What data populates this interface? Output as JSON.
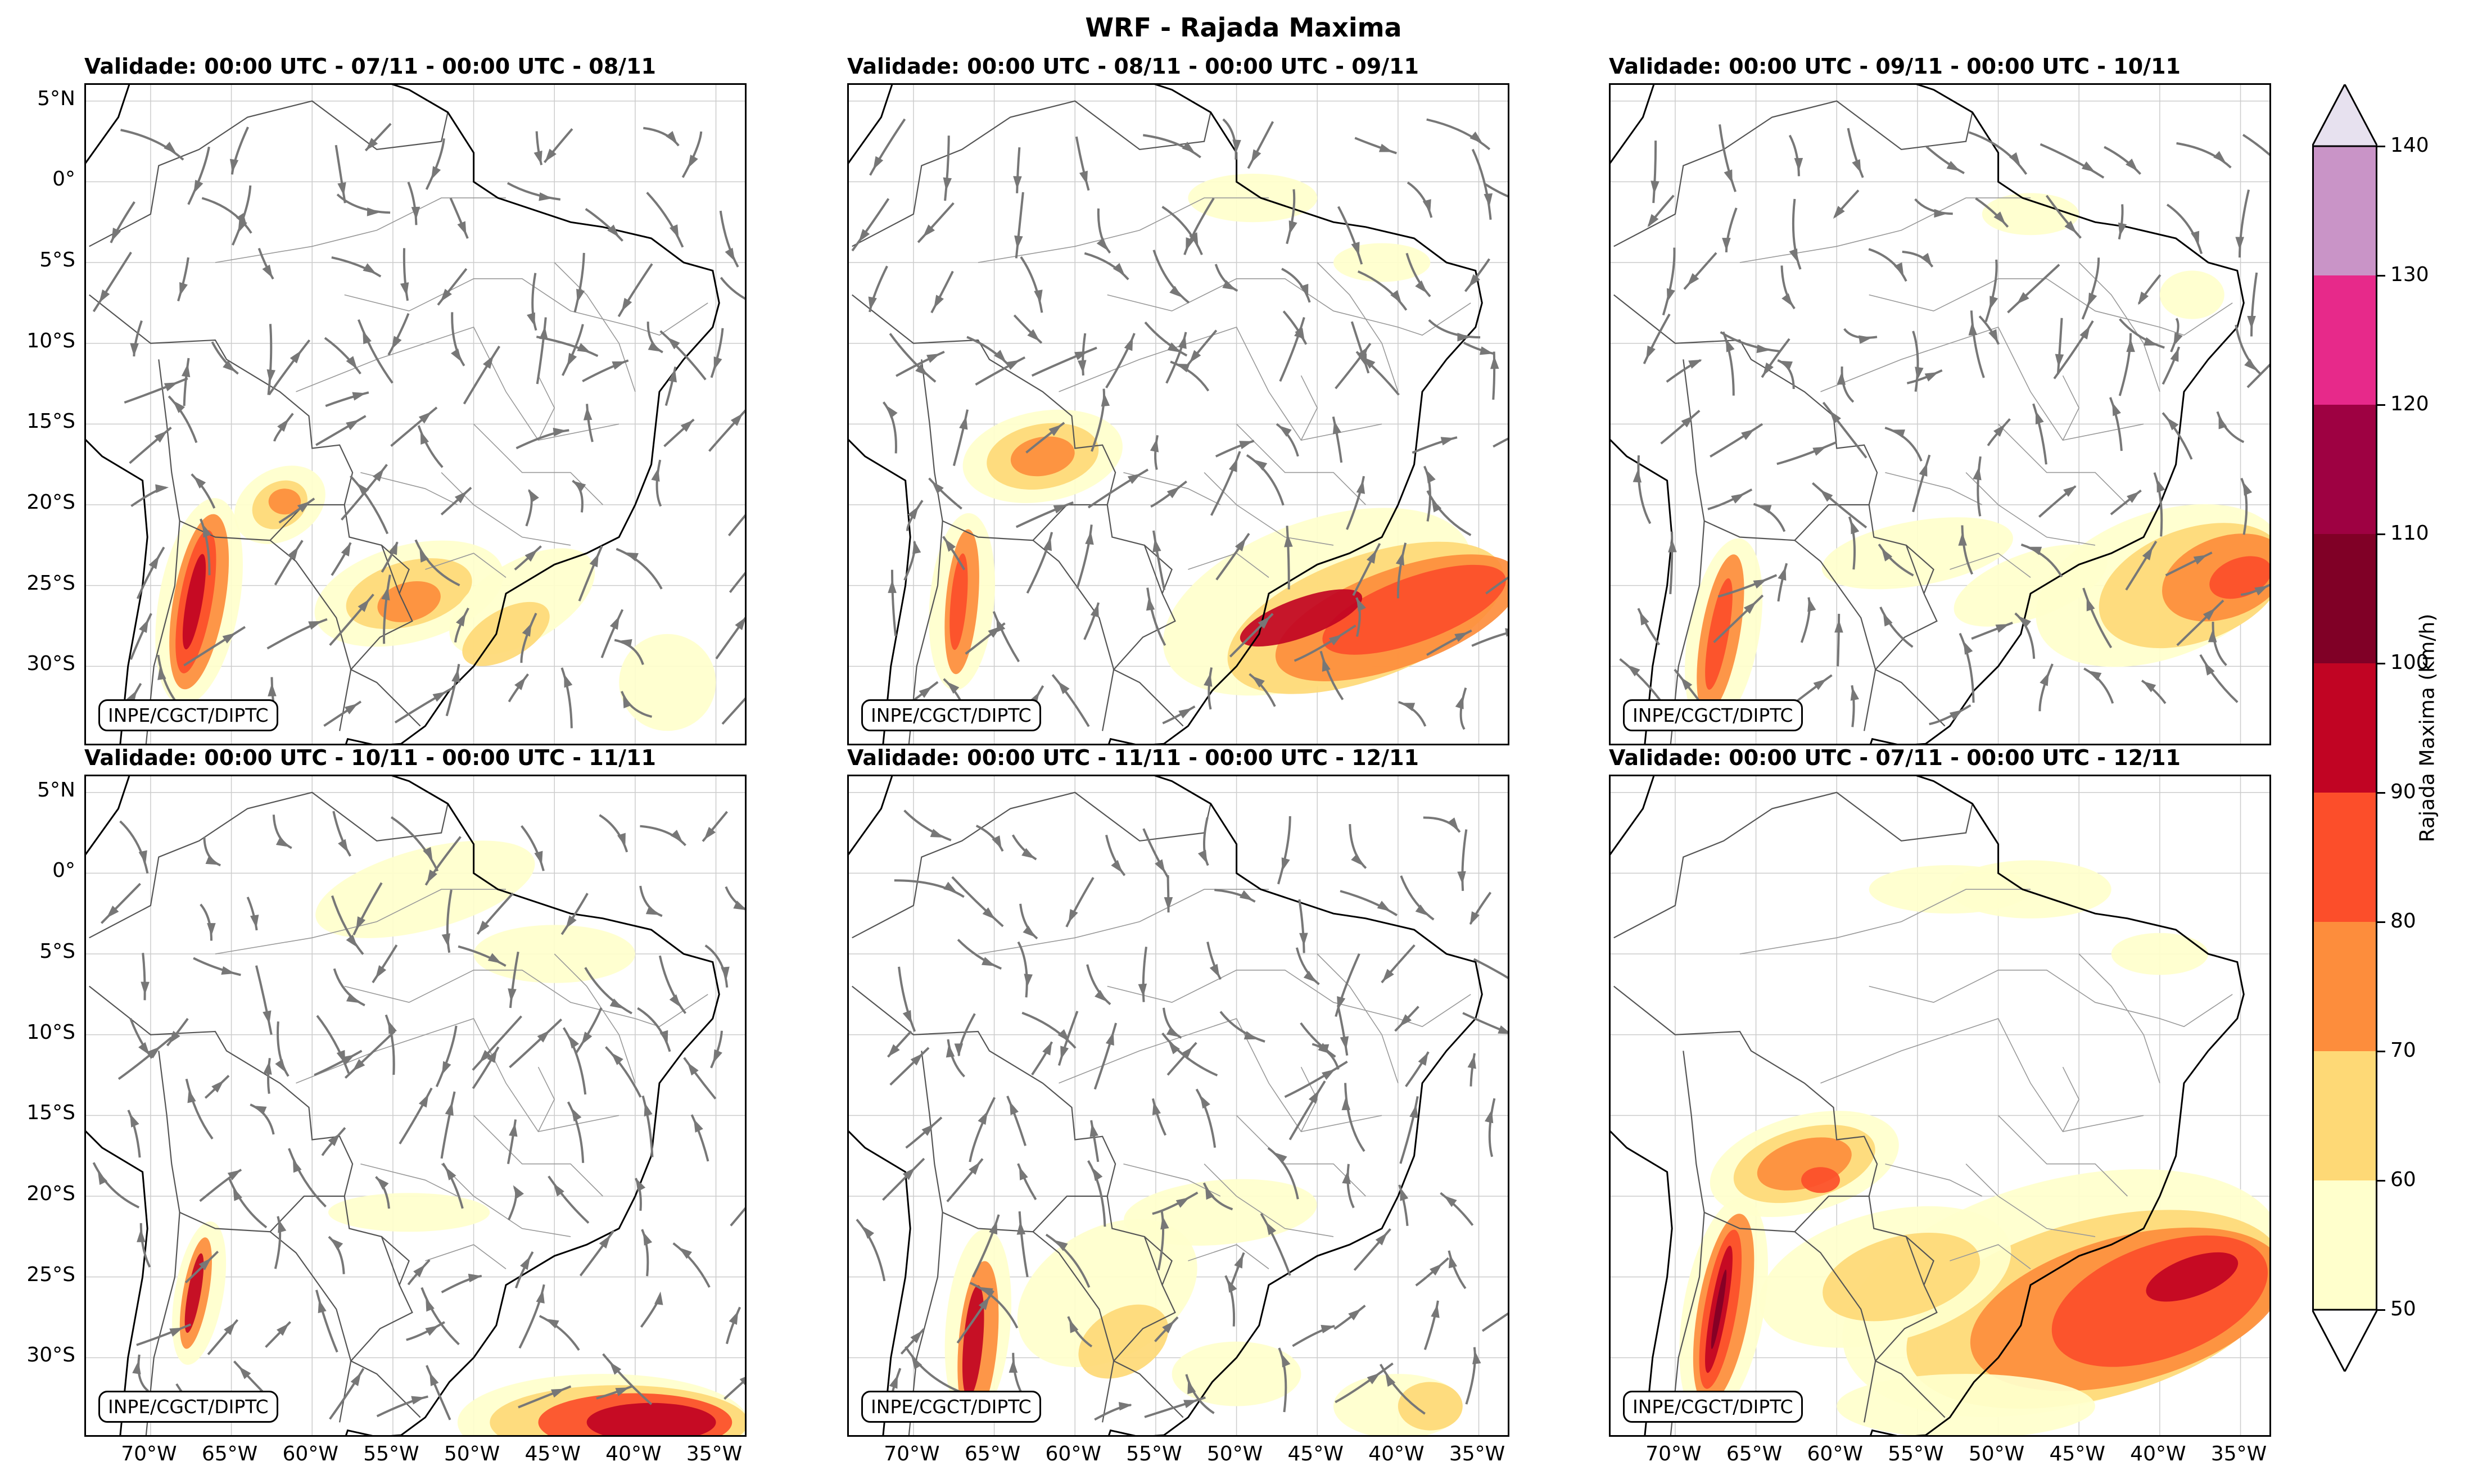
{
  "title": "WRF - Rajada Maxima",
  "credit": "INPE/CGCT/DIPTC",
  "lat_ticks": [
    "5°N",
    "0°",
    "5°S",
    "10°S",
    "15°S",
    "20°S",
    "25°S",
    "30°S"
  ],
  "lat_values": [
    5,
    0,
    -5,
    -10,
    -15,
    -20,
    -25,
    -30
  ],
  "lon_ticks": [
    "70°W",
    "65°W",
    "60°W",
    "55°W",
    "50°W",
    "45°W",
    "40°W",
    "35°W"
  ],
  "lon_values": [
    -70,
    -65,
    -60,
    -55,
    -50,
    -45,
    -40,
    -35
  ],
  "extent": {
    "lon_min": -74,
    "lon_max": -33,
    "lat_min": -35,
    "lat_max": 6
  },
  "panels": [
    {
      "title": "Validade: 00:00 UTC - 07/11 - 00:00 UTC - 08/11",
      "streamlines": true
    },
    {
      "title": "Validade: 00:00 UTC - 08/11 - 00:00 UTC - 09/11",
      "streamlines": true
    },
    {
      "title": "Validade: 00:00 UTC - 09/11 - 00:00 UTC - 10/11",
      "streamlines": true
    },
    {
      "title": "Validade: 00:00 UTC - 10/11 - 00:00 UTC - 11/11",
      "streamlines": true
    },
    {
      "title": "Validade: 00:00 UTC - 11/11 - 00:00 UTC - 12/11",
      "streamlines": true
    },
    {
      "title": "Validade: 00:00 UTC - 07/11 - 00:00 UTC - 12/11",
      "streamlines": false
    }
  ],
  "colorbar": {
    "label": "Rajada Maxima (km/h)",
    "ticks": [
      "50",
      "60",
      "70",
      "80",
      "90",
      "100",
      "110",
      "120",
      "130",
      "140"
    ],
    "levels": [
      50,
      60,
      70,
      80,
      90,
      100,
      110,
      120,
      130,
      140
    ],
    "colors": [
      "#ffffcc",
      "#fed976",
      "#fd8d3c",
      "#fc4e2a",
      "#c10423",
      "#800026",
      "#9e0142",
      "#e7298a",
      "#c994c7"
    ],
    "under_color": "#ffffff",
    "over_color": "#e7e1ef"
  },
  "colors": {
    "coast": "#000000",
    "border": "#555555",
    "stream": "#777777",
    "grid": "#cccccc"
  }
}
